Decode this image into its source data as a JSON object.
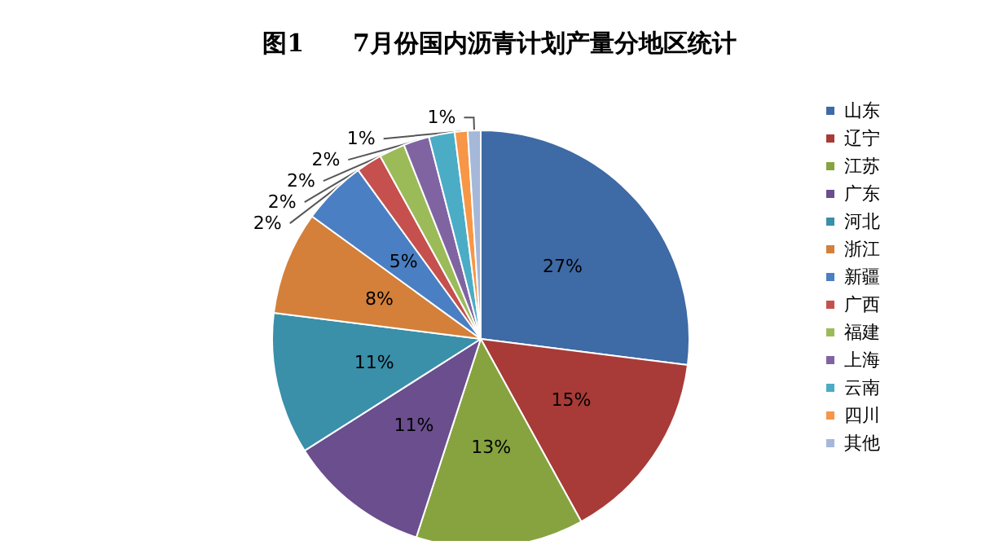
{
  "chart_data": {
    "type": "pie",
    "title": "图1　　7月份国内沥青计划产量分地区统计",
    "categories": [
      "山东",
      "辽宁",
      "江苏",
      "广东",
      "河北",
      "浙江",
      "新疆",
      "广西",
      "福建",
      "上海",
      "云南",
      "四川",
      "其他"
    ],
    "values": [
      27,
      15,
      13,
      11,
      11,
      8,
      5,
      2,
      2,
      2,
      2,
      1,
      1
    ],
    "value_labels": [
      "27%",
      "15%",
      "13%",
      "11%",
      "11%",
      "8%",
      "5%",
      "2%",
      "2%",
      "2%",
      "2%",
      "1%",
      "1%"
    ],
    "colors": [
      "#3e6aa5",
      "#a83b37",
      "#87a33f",
      "#6a4e8d",
      "#3a8fa9",
      "#d4803a",
      "#4a7fc3",
      "#c5504d",
      "#9bbb59",
      "#8064a2",
      "#4bacc6",
      "#f79646",
      "#a5b8d9"
    ],
    "legend": "right"
  }
}
